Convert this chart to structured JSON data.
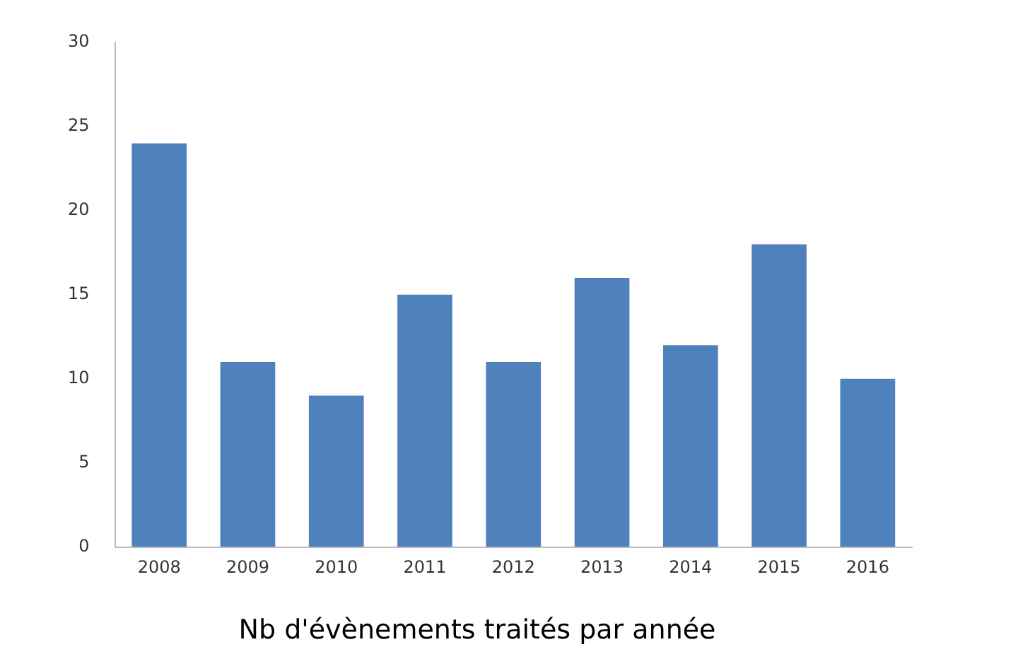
{
  "chart_data": {
    "type": "bar",
    "title": "Nb d'évènements traités par année",
    "categories": [
      "2008",
      "2009",
      "2010",
      "2011",
      "2012",
      "2013",
      "2014",
      "2015",
      "2016"
    ],
    "values": [
      24,
      11,
      9,
      15,
      11,
      16,
      12,
      18,
      10
    ],
    "color": "#4f81bd",
    "ylim": [
      0,
      30
    ],
    "yticks": [
      0,
      5,
      10,
      15,
      20,
      25,
      30
    ],
    "grid": false,
    "legend": false
  }
}
